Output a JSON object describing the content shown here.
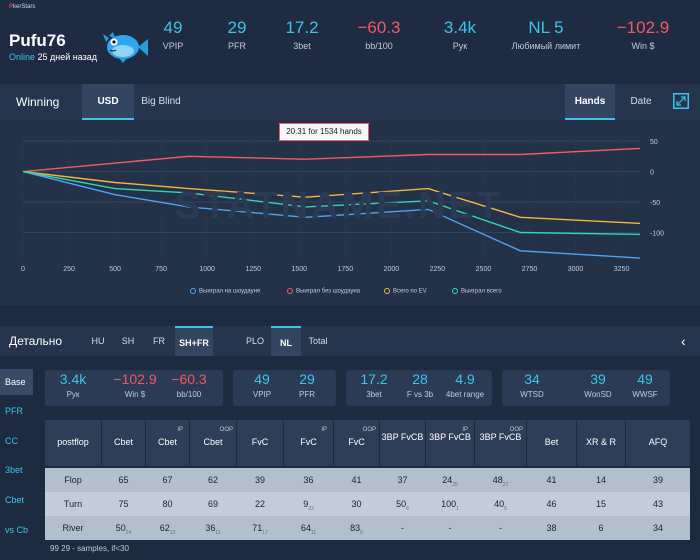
{
  "header": {
    "brand_prefix": "P",
    "brand_suffix": "kerStars",
    "player_name": "Pufu76",
    "online_label": "Online",
    "online_time": "25 дней назад",
    "stats": [
      {
        "value": "49",
        "label": "VPIP",
        "negative": false
      },
      {
        "value": "29",
        "label": "PFR",
        "negative": false
      },
      {
        "value": "17.2",
        "label": "3bet",
        "negative": false
      },
      {
        "value": "−60.3",
        "label": "bb/100",
        "negative": true
      },
      {
        "value": "3.4k",
        "label": "Рук",
        "negative": false
      },
      {
        "value": "NL 5",
        "label": "Любимый лимит",
        "negative": false
      },
      {
        "value": "−102.9",
        "label": "Win $",
        "negative": true
      }
    ]
  },
  "winning_bar": {
    "title": "Winning",
    "units": [
      "USD",
      "Big Blind"
    ],
    "x_modes": [
      "Hands",
      "Date"
    ]
  },
  "chart_data": {
    "type": "line",
    "tooltip": "20.31 for 1534 hands",
    "watermark": "STATNAME.NET",
    "xlim": [
      0,
      3350
    ],
    "ylim": [
      -150,
      60
    ],
    "x_ticks": [
      "0",
      "250",
      "500",
      "750",
      "1000",
      "1250",
      "1500",
      "1750",
      "2000",
      "2250",
      "2500",
      "2750",
      "3000",
      "3250"
    ],
    "y_ticks": [
      "50",
      "0",
      "-50",
      "-100"
    ],
    "grid": true,
    "legend_position": "bottom",
    "series": [
      {
        "name": "Выиграл на шоудауне",
        "color": "#4ea3f0",
        "x": [
          0,
          500,
          900,
          1534,
          2200,
          2700,
          3350
        ],
        "y": [
          0,
          -38,
          -58,
          -75,
          -62,
          -130,
          -142
        ]
      },
      {
        "name": "Выиграл без шоудауна",
        "color": "#f05a60",
        "x": [
          0,
          900,
          1534,
          2200,
          2700,
          3350
        ],
        "y": [
          0,
          25,
          20.31,
          28,
          28,
          38
        ]
      },
      {
        "name": "Всего по EV",
        "color": "#f0b840",
        "x": [
          0,
          500,
          900,
          1534,
          2200,
          2700,
          3350
        ],
        "y": [
          0,
          -18,
          -28,
          -42,
          -28,
          -75,
          -85
        ]
      },
      {
        "name": "Выиграл всего",
        "color": "#2fd6ae",
        "x": [
          0,
          500,
          900,
          1534,
          2200,
          2700,
          3350
        ],
        "y": [
          0,
          -28,
          -35,
          -58,
          -48,
          -100,
          -103
        ]
      }
    ]
  },
  "detail": {
    "title": "Детально",
    "tabs_players": [
      "HU",
      "SH",
      "FR",
      "SH+FR"
    ],
    "tabs_games": [
      "PLO",
      "NL",
      "Total"
    ],
    "sidebar": [
      "Base",
      "PFR",
      "CC",
      "3bet",
      "Cbet",
      "vs Cb"
    ],
    "cards": [
      [
        {
          "value": "3.4k",
          "label": "Рук",
          "negative": false
        },
        {
          "value": "−102.9",
          "label": "Win $",
          "negative": true
        },
        {
          "value": "−60.3",
          "label": "bb/100",
          "negative": true
        }
      ],
      [
        {
          "value": "49",
          "label": "VPIP",
          "negative": false
        },
        {
          "value": "29",
          "label": "PFR",
          "negative": false
        }
      ],
      [
        {
          "value": "17.2",
          "label": "3bet",
          "negative": false
        },
        {
          "value": "28",
          "label": "F vs 3b",
          "negative": false
        },
        {
          "value": "4.9",
          "label": "4bet range",
          "negative": false
        }
      ],
      [
        {
          "value": "34",
          "label": "WTSD",
          "negative": false
        },
        {
          "value": "39",
          "label": "WonSD",
          "negative": false
        },
        {
          "value": "49",
          "label": "WWSF",
          "negative": false
        }
      ]
    ],
    "table": {
      "headers": [
        {
          "text": "postflop",
          "sup": ""
        },
        {
          "text": "Cbet",
          "sup": ""
        },
        {
          "text": "Cbet",
          "sup": "IP"
        },
        {
          "text": "Cbet",
          "sup": "OOP"
        },
        {
          "text": "FvC",
          "sup": ""
        },
        {
          "text": "FvC",
          "sup": "IP"
        },
        {
          "text": "FvC",
          "sup": "OOP"
        },
        {
          "text": "3BP FvCB",
          "sup": ""
        },
        {
          "text": "3BP FvCB",
          "sup": "IP"
        },
        {
          "text": "3BP FvCB",
          "sup": "OOP"
        },
        {
          "text": "Bet",
          "sup": ""
        },
        {
          "text": "XR & R",
          "sup": ""
        },
        {
          "text": "AFQ",
          "sup": ""
        }
      ],
      "rows": [
        [
          [
            "Flop",
            ""
          ],
          [
            "65",
            ""
          ],
          [
            "67",
            ""
          ],
          [
            "62",
            ""
          ],
          [
            "39",
            ""
          ],
          [
            "36",
            ""
          ],
          [
            "41",
            ""
          ],
          [
            "37",
            ""
          ],
          [
            "24",
            "25"
          ],
          [
            "48",
            "27"
          ],
          [
            "41",
            ""
          ],
          [
            "14",
            ""
          ],
          [
            "39",
            ""
          ]
        ],
        [
          [
            "Turn",
            ""
          ],
          [
            "75",
            ""
          ],
          [
            "80",
            ""
          ],
          [
            "69",
            ""
          ],
          [
            "22",
            ""
          ],
          [
            "9",
            "23"
          ],
          [
            "30",
            ""
          ],
          [
            "50",
            "6"
          ],
          [
            "100",
            "1"
          ],
          [
            "40",
            "5"
          ],
          [
            "46",
            ""
          ],
          [
            "15",
            ""
          ],
          [
            "43",
            ""
          ]
        ],
        [
          [
            "River",
            ""
          ],
          [
            "50",
            "24"
          ],
          [
            "62",
            "13"
          ],
          [
            "36",
            "11"
          ],
          [
            "71",
            "17"
          ],
          [
            "64",
            "11"
          ],
          [
            "83",
            "6"
          ],
          [
            "-",
            ""
          ],
          [
            "-",
            ""
          ],
          [
            "-",
            ""
          ],
          [
            "38",
            ""
          ],
          [
            "6",
            ""
          ],
          [
            "34",
            ""
          ]
        ]
      ]
    },
    "footnote_value": "99",
    "footnote_text": "29 - samples, if<30"
  }
}
